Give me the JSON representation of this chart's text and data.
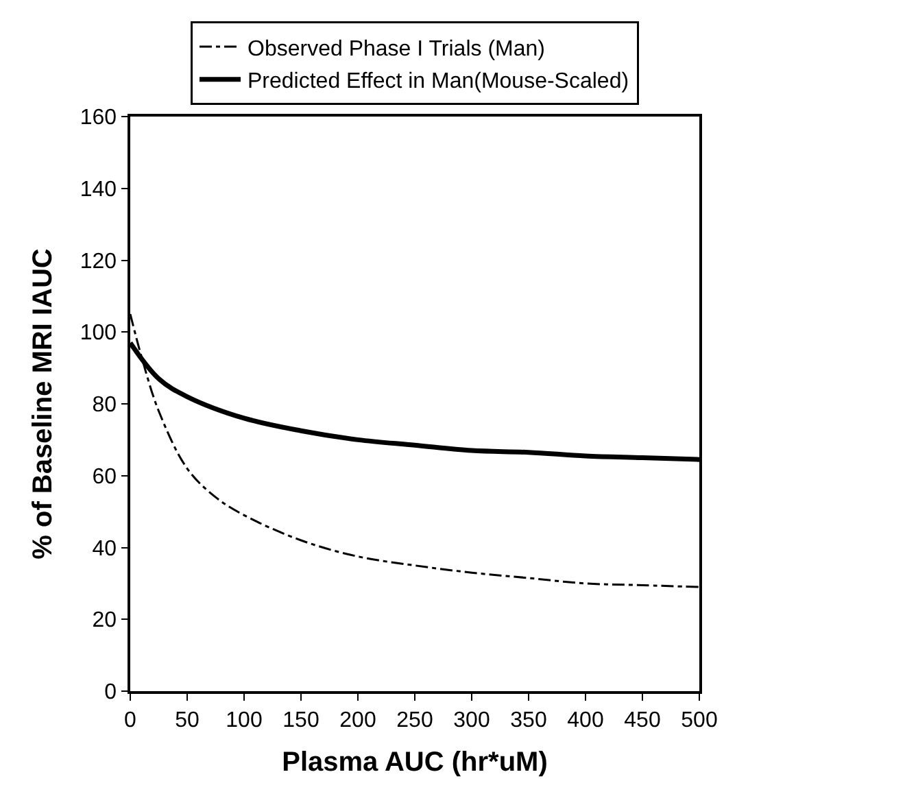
{
  "chart_data": {
    "type": "line",
    "xlabel": "Plasma AUC (hr*uM)",
    "ylabel": "% of Baseline MRI IAUC",
    "xlim": [
      0,
      500
    ],
    "xticks": [
      0,
      50,
      100,
      150,
      200,
      250,
      300,
      350,
      400,
      450,
      500
    ],
    "ylim": [
      0,
      160
    ],
    "yticks": [
      0,
      20,
      40,
      60,
      80,
      100,
      120,
      140,
      160
    ],
    "legend": "top",
    "marker": "none",
    "series": [
      {
        "name": "Observed Phase I Trials (Man)",
        "color": "#000000",
        "line_style": "dashdot",
        "x": [
          0,
          10,
          25,
          50,
          75,
          100,
          150,
          200,
          250,
          300,
          350,
          400,
          450,
          500
        ],
        "values": [
          105,
          93,
          78,
          62,
          54,
          49,
          42,
          37.5,
          35,
          33,
          31.5,
          30,
          29.5,
          29
        ]
      },
      {
        "name": "Predicted Effect in Man(Mouse-Scaled)",
        "color": "#000000",
        "line_style": "solid",
        "x": [
          0,
          25,
          50,
          100,
          150,
          200,
          250,
          300,
          350,
          400,
          450,
          500
        ],
        "values": [
          97,
          87,
          82,
          76,
          72.5,
          70,
          68.5,
          67,
          66.5,
          65.5,
          65,
          64.5
        ]
      }
    ]
  }
}
